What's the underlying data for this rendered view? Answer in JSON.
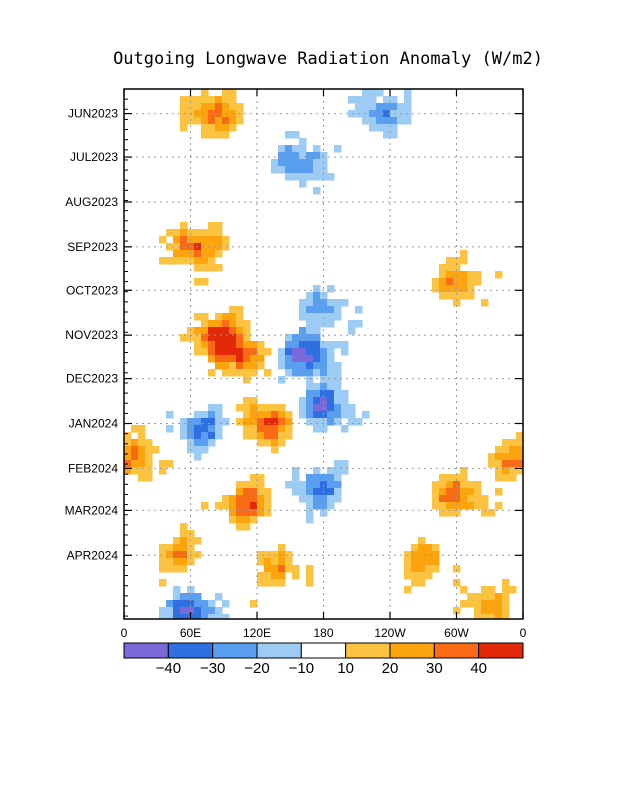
{
  "chart_data": {
    "type": "heatmap",
    "title": "Outgoing Longwave Radiation Anomaly (W/m2)",
    "xlabel": "",
    "ylabel": "",
    "x_tick_labels": [
      "0",
      "60E",
      "120E",
      "180",
      "120W",
      "60W",
      "0"
    ],
    "x_tick_values_deg_east": [
      0,
      60,
      120,
      180,
      240,
      300,
      360
    ],
    "x_range_deg_east": [
      0,
      360
    ],
    "y_tick_labels": [
      "JUN2023",
      "JUL2023",
      "AUG2023",
      "SEP2023",
      "OCT2023",
      "NOV2023",
      "DEC2023",
      "JAN2024",
      "FEB2024",
      "MAR2024",
      "APR2024"
    ],
    "y_range": [
      "2023-05-15",
      "2024-05-15"
    ],
    "y_direction": "time increases downward",
    "grid": true,
    "colorbar": {
      "levels": [
        -50,
        -40,
        -30,
        -20,
        -10,
        10,
        20,
        30,
        40,
        50
      ],
      "labels": [
        "−40",
        "−30",
        "−20",
        "−10",
        "10",
        "20",
        "30",
        "40"
      ],
      "colors": [
        "#7b68d9",
        "#2f6fe0",
        "#5a9ef0",
        "#9ccbf3",
        "#ffffff",
        "#fcc341",
        "#fba40e",
        "#f86b14",
        "#e22a0b"
      ]
    },
    "anomaly_features": [
      {
        "lon": 85,
        "date": "2023-11-01",
        "value": 45
      },
      {
        "lon": 105,
        "date": "2023-11-15",
        "value": 38
      },
      {
        "lon": 130,
        "date": "2024-01-01",
        "value": 42
      },
      {
        "lon": 65,
        "date": "2023-09-01",
        "value": 40
      },
      {
        "lon": 80,
        "date": "2023-06-01",
        "value": 35
      },
      {
        "lon": 110,
        "date": "2024-02-25",
        "value": 38
      },
      {
        "lon": 300,
        "date": "2024-02-20",
        "value": 36
      },
      {
        "lon": 300,
        "date": "2023-09-25",
        "value": 28
      },
      {
        "lon": 165,
        "date": "2023-11-15",
        "value": -45
      },
      {
        "lon": 180,
        "date": "2023-12-20",
        "value": -42
      },
      {
        "lon": 60,
        "date": "2024-05-10",
        "value": -45
      },
      {
        "lon": 70,
        "date": "2024-01-05",
        "value": -32
      },
      {
        "lon": 175,
        "date": "2024-02-15",
        "value": -35
      },
      {
        "lon": 230,
        "date": "2023-06-01",
        "value": -28
      },
      {
        "lon": 160,
        "date": "2023-07-05",
        "value": -30
      },
      {
        "lon": 180,
        "date": "2023-10-15",
        "value": -25
      },
      {
        "lon": 10,
        "date": "2024-01-25",
        "value": 30
      },
      {
        "lon": 350,
        "date": "2024-01-25",
        "value": 28
      },
      {
        "lon": 50,
        "date": "2024-04-01",
        "value": 28
      },
      {
        "lon": 140,
        "date": "2024-04-10",
        "value": 25
      },
      {
        "lon": 270,
        "date": "2024-04-05",
        "value": 25
      },
      {
        "lon": 330,
        "date": "2024-05-05",
        "value": 26
      }
    ]
  }
}
